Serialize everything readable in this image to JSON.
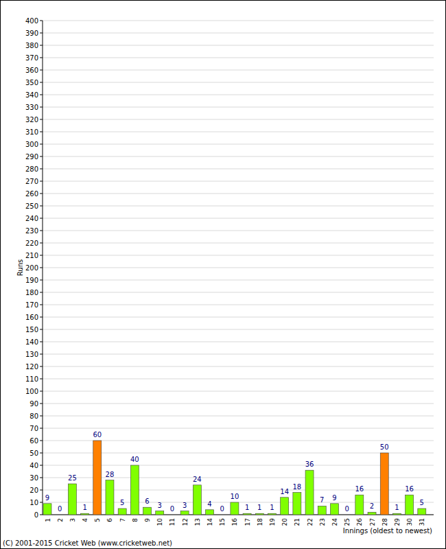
{
  "chart_data": {
    "type": "bar",
    "x_label": "Innings (oldest to newest)",
    "y_label": "Runs",
    "annotations": [
      "(C) 2001-2015 Cricket Web (www.cricketweb.net)"
    ],
    "categories": [
      "1",
      "2",
      "3",
      "4",
      "5",
      "6",
      "7",
      "8",
      "9",
      "10",
      "11",
      "12",
      "13",
      "14",
      "15",
      "16",
      "17",
      "18",
      "19",
      "20",
      "21",
      "22",
      "23",
      "24",
      "25",
      "26",
      "27",
      "28",
      "29",
      "30",
      "31"
    ],
    "values": [
      9,
      0,
      25,
      1,
      60,
      28,
      5,
      40,
      6,
      3,
      0,
      3,
      24,
      4,
      0,
      10,
      1,
      1,
      1,
      14,
      18,
      36,
      7,
      9,
      0,
      16,
      2,
      50,
      1,
      16,
      5
    ],
    "colors": [
      "#80ff00",
      "#80ff00",
      "#80ff00",
      "#80ff00",
      "#ff8000",
      "#80ff00",
      "#80ff00",
      "#80ff00",
      "#80ff00",
      "#80ff00",
      "#80ff00",
      "#80ff00",
      "#80ff00",
      "#80ff00",
      "#80ff00",
      "#80ff00",
      "#80ff00",
      "#80ff00",
      "#80ff00",
      "#80ff00",
      "#80ff00",
      "#80ff00",
      "#80ff00",
      "#80ff00",
      "#80ff00",
      "#80ff00",
      "#80ff00",
      "#ff8000",
      "#80ff00",
      "#80ff00",
      "#80ff00"
    ],
    "ylim": [
      0,
      400
    ],
    "yticks": [
      0,
      10,
      20,
      30,
      40,
      50,
      60,
      70,
      80,
      90,
      100,
      110,
      120,
      130,
      140,
      150,
      160,
      170,
      180,
      190,
      200,
      210,
      220,
      230,
      240,
      250,
      260,
      270,
      280,
      290,
      300,
      310,
      320,
      330,
      340,
      350,
      360,
      370,
      380,
      390,
      400
    ],
    "grid": true,
    "data_labels": true
  }
}
